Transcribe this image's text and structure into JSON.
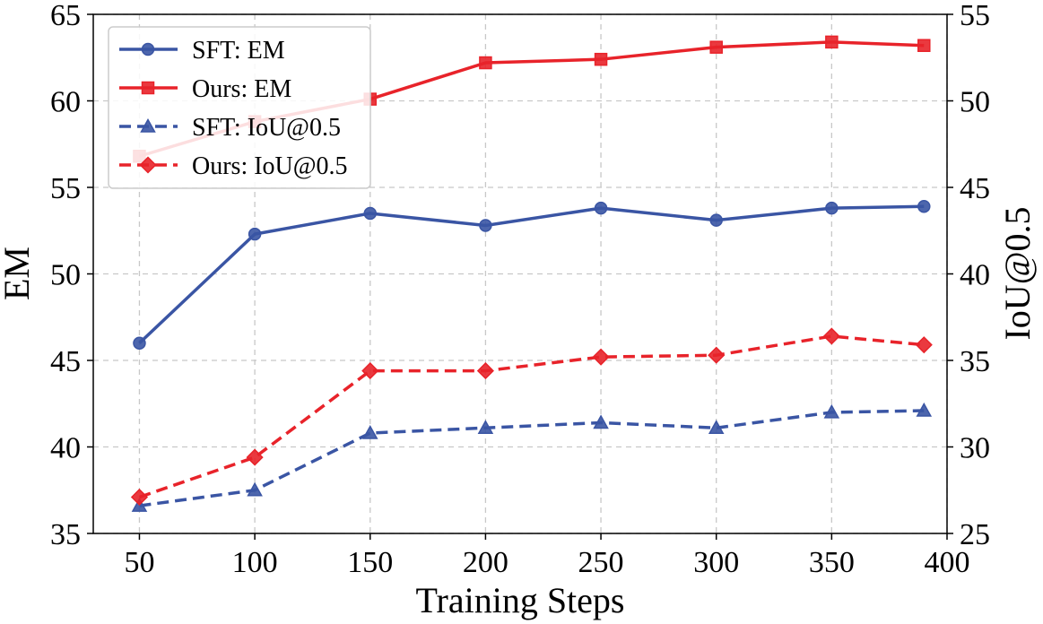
{
  "chart_data": {
    "type": "line",
    "title": "",
    "xlabel": "Training Steps",
    "ylabel": "EM",
    "y2label": "IoU@0.5",
    "x": [
      50,
      100,
      150,
      200,
      250,
      300,
      350,
      390
    ],
    "xticks": [
      50,
      100,
      150,
      200,
      250,
      300,
      350,
      400
    ],
    "xlim": [
      30,
      400
    ],
    "ylim": [
      35,
      65
    ],
    "yticks": [
      35,
      40,
      45,
      50,
      55,
      60,
      65
    ],
    "y2lim": [
      25,
      55
    ],
    "y2ticks": [
      25,
      30,
      35,
      40,
      45,
      50,
      55
    ],
    "grid": true,
    "legend_position": "top-left",
    "series": [
      {
        "name": "SFT: EM",
        "axis": "left",
        "color": "#3a55a4",
        "marker": "circle",
        "dash": false,
        "values": [
          46.0,
          52.3,
          53.5,
          52.8,
          53.8,
          53.1,
          53.8,
          53.9
        ]
      },
      {
        "name": "Ours: EM",
        "axis": "left",
        "color": "#e8232a",
        "marker": "square",
        "dash": false,
        "values": [
          56.8,
          58.8,
          60.1,
          62.2,
          62.4,
          63.1,
          63.4,
          63.2
        ]
      },
      {
        "name": "SFT: IoU@0.5",
        "axis": "right",
        "color": "#3a55a4",
        "marker": "triangle",
        "dash": true,
        "values": [
          26.6,
          27.5,
          30.8,
          31.1,
          31.4,
          31.1,
          32.0,
          32.1
        ]
      },
      {
        "name": "Ours: IoU@0.5",
        "axis": "right",
        "color": "#e8232a",
        "marker": "diamond",
        "dash": true,
        "values": [
          27.1,
          29.4,
          34.4,
          34.4,
          35.2,
          35.3,
          36.4,
          35.9
        ]
      }
    ]
  }
}
